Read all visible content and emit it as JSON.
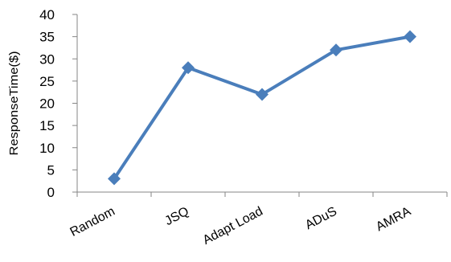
{
  "chart_data": {
    "type": "line",
    "categories": [
      "Random",
      "JSQ",
      "Adapt Load",
      "ADuS",
      "AMRA"
    ],
    "series": [
      {
        "values": [
          3,
          28,
          22,
          32,
          35
        ]
      }
    ],
    "ylabel": "ResponseTime($)",
    "xlabel": "",
    "ylim": [
      0,
      40
    ],
    "yticks": [
      0,
      5,
      10,
      15,
      20,
      25,
      30,
      35,
      40
    ],
    "grid": false,
    "marker": "diamond",
    "colors": {
      "series": "#4a7ebb",
      "axis": "#868686"
    }
  }
}
